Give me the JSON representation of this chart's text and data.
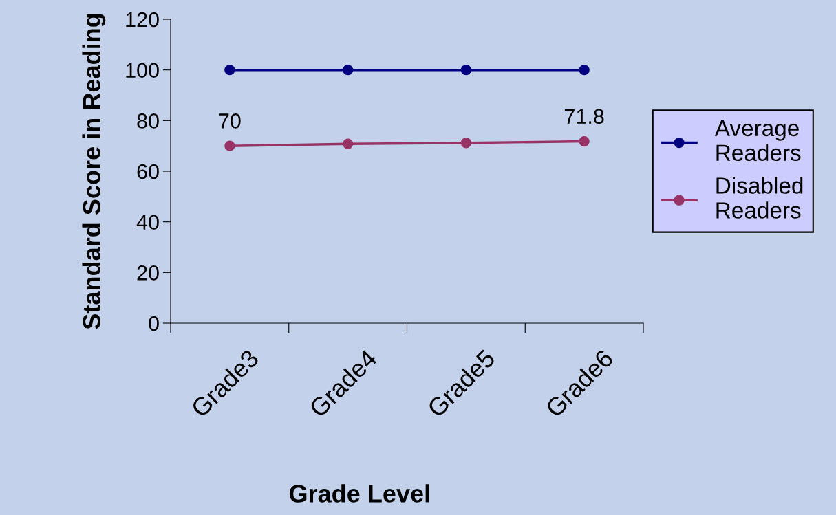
{
  "chart_data": {
    "type": "line",
    "xlabel": "Grade Level",
    "ylabel": "Standard Score in Reading",
    "categories": [
      "Grade3",
      "Grade4",
      "Grade5",
      "Grade6"
    ],
    "series": [
      {
        "name": "Average Readers",
        "color": "#000080",
        "values": [
          100,
          100,
          100,
          100
        ]
      },
      {
        "name": "Disabled Readers",
        "color": "#993366",
        "values": [
          70,
          70.8,
          71.2,
          71.8
        ],
        "value_labels": [
          "70",
          null,
          null,
          "71.8"
        ]
      }
    ],
    "ylim": [
      0,
      120
    ],
    "yticks": [
      0,
      20,
      40,
      60,
      80,
      100,
      120
    ],
    "grid": false,
    "legend": "right",
    "marker": "circle",
    "line_style": "solid"
  }
}
